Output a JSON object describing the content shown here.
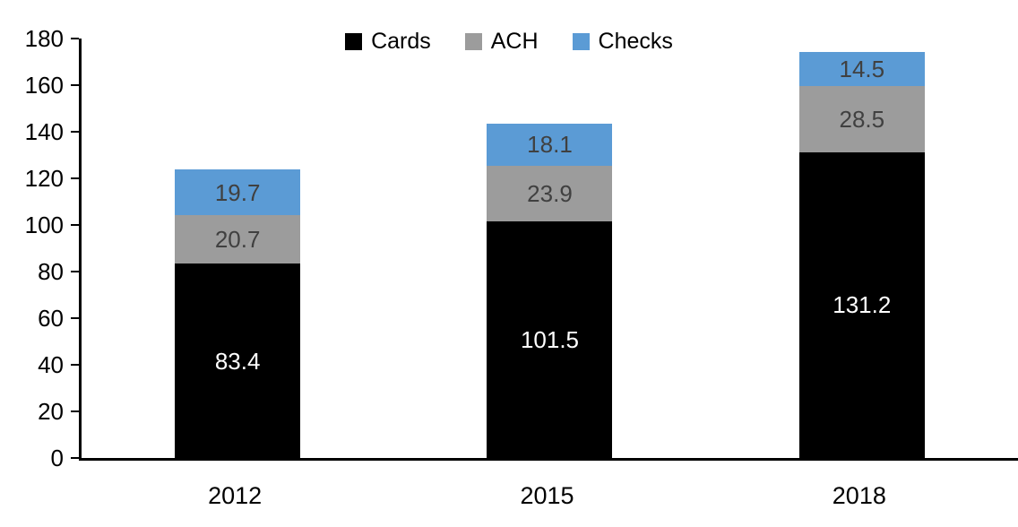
{
  "chart_data": {
    "type": "bar",
    "stacked": true,
    "title": "",
    "xlabel": "",
    "ylabel": "",
    "categories": [
      "2012",
      "2015",
      "2018"
    ],
    "series": [
      {
        "name": "Cards",
        "color": "#000000",
        "label_color": "#ffffff",
        "values": [
          83.4,
          101.5,
          131.2
        ]
      },
      {
        "name": "ACH",
        "color": "#9c9c9c",
        "label_color": "#404040",
        "values": [
          20.7,
          23.9,
          28.5
        ]
      },
      {
        "name": "Checks",
        "color": "#5b9bd5",
        "label_color": "#404040",
        "values": [
          19.7,
          18.1,
          14.5
        ]
      }
    ],
    "totals": [
      123.8,
      143.5,
      174.2
    ],
    "ylim": [
      0,
      180
    ],
    "yticks": [
      0,
      20,
      40,
      60,
      80,
      100,
      120,
      140,
      160,
      180
    ],
    "legend_position": "top-center",
    "grid": false,
    "axis_color": "#000000"
  }
}
